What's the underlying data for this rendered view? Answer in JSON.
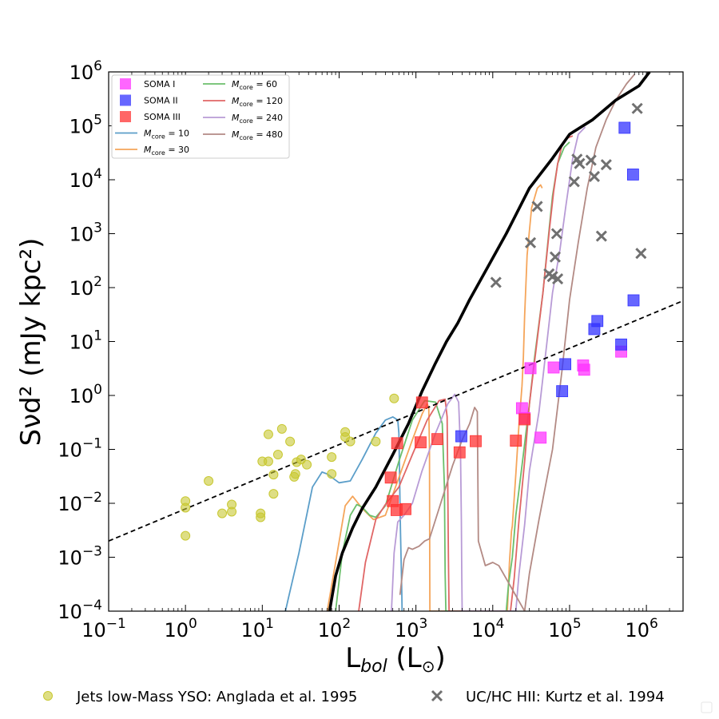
{
  "chart_data": {
    "type": "scatter",
    "title": "",
    "xlabel_main": "L",
    "xlabel_sub": "bol",
    "xlabel_unit_open": " (L",
    "xlabel_unit_sub": "⊙",
    "xlabel_unit_close": ")",
    "ylabel_text": "Sνd² (mJy kpc²)",
    "xscale": "log",
    "yscale": "log",
    "xlim": [
      0.1,
      3000000
    ],
    "ylim": [
      0.0001,
      1000000
    ],
    "x_ticks": [
      {
        "value": 0.1,
        "base": "10",
        "exp": "−1"
      },
      {
        "value": 1,
        "base": "10",
        "exp": "0"
      },
      {
        "value": 10,
        "base": "10",
        "exp": "1"
      },
      {
        "value": 100,
        "base": "10",
        "exp": "2"
      },
      {
        "value": 1000,
        "base": "10",
        "exp": "3"
      },
      {
        "value": 10000,
        "base": "10",
        "exp": "4"
      },
      {
        "value": 100000,
        "base": "10",
        "exp": "5"
      },
      {
        "value": 1000000,
        "base": "10",
        "exp": "6"
      }
    ],
    "y_ticks": [
      {
        "value": 0.0001,
        "base": "10",
        "exp": "−4"
      },
      {
        "value": 0.001,
        "base": "10",
        "exp": "−3"
      },
      {
        "value": 0.01,
        "base": "10",
        "exp": "−2"
      },
      {
        "value": 0.1,
        "base": "10",
        "exp": "−1"
      },
      {
        "value": 1,
        "base": "10",
        "exp": "0"
      },
      {
        "value": 10,
        "base": "10",
        "exp": "1"
      },
      {
        "value": 100,
        "base": "10",
        "exp": "2"
      },
      {
        "value": 1000,
        "base": "10",
        "exp": "3"
      },
      {
        "value": 10000,
        "base": "10",
        "exp": "4"
      },
      {
        "value": 100000,
        "base": "10",
        "exp": "5"
      },
      {
        "value": 1000000,
        "base": "10",
        "exp": "6"
      }
    ],
    "colors": {
      "soma1": "#ff33ff",
      "soma2": "#3333ff",
      "soma3": "#ff3333",
      "anglada": "#c8c832",
      "kurtz": "#707070",
      "m10": "#5b9ec9",
      "m30": "#f5a55a",
      "m60": "#6bbf6b",
      "m120": "#e06666",
      "m240": "#b89bd6",
      "m480": "#b38a84",
      "envelope": "#000000",
      "fit": "#000000"
    },
    "legend_items": [
      {
        "label": "SOMA I",
        "color": "#ff33ff",
        "kind": "square"
      },
      {
        "label": "SOMA II",
        "color": "#3333ff",
        "kind": "square"
      },
      {
        "label": "SOMA III",
        "color": "#ff3333",
        "kind": "square"
      },
      {
        "label": "M",
        "sub": "core",
        "value": " = 10",
        "color": "#5b9ec9",
        "kind": "line"
      },
      {
        "label": "M",
        "sub": "core",
        "value": " = 30",
        "color": "#f5a55a",
        "kind": "line"
      },
      {
        "label": "M",
        "sub": "core",
        "value": " = 60",
        "color": "#6bbf6b",
        "kind": "line"
      },
      {
        "label": "M",
        "sub": "core",
        "value": " = 120",
        "color": "#e06666",
        "kind": "line"
      },
      {
        "label": "M",
        "sub": "core",
        "value": " = 240",
        "color": "#b89bd6",
        "kind": "line"
      },
      {
        "label": "M",
        "sub": "core",
        "value": " = 480",
        "color": "#b38a84",
        "kind": "line"
      }
    ],
    "bottom_legend": [
      {
        "label": "Jets low-Mass YSO: Anglada et al. 1995",
        "kind": "circle"
      },
      {
        "label": "UC/HC HII: Kurtz et al. 1994",
        "kind": "x"
      }
    ],
    "series": [
      {
        "name": "SOMA I",
        "marker": "square",
        "color": "#ff33ff",
        "x": [
          24000,
          26000,
          31000,
          42000,
          62000,
          150000,
          155000,
          470000
        ],
        "y": [
          0.58,
          0.38,
          3.2,
          0.165,
          3.3,
          3.6,
          3.0,
          6.5
        ]
      },
      {
        "name": "SOMA II",
        "marker": "square",
        "color": "#3333ff",
        "x": [
          3900,
          80000,
          88000,
          210000,
          230000,
          470000,
          520000,
          670000,
          680000
        ],
        "y": [
          0.175,
          1.2,
          3.8,
          17,
          24,
          8.8,
          92000,
          12500,
          58
        ]
      },
      {
        "name": "SOMA III",
        "marker": "square",
        "color": "#ff3333",
        "x": [
          470,
          500,
          560,
          570,
          730,
          1150,
          1200,
          1900,
          3700,
          6000,
          20000,
          26000
        ],
        "y": [
          0.03,
          0.011,
          0.0075,
          0.13,
          0.0078,
          0.135,
          0.74,
          0.155,
          0.088,
          0.142,
          0.145,
          0.36
        ]
      },
      {
        "name": "Jets low-Mass YSO: Anglada et al. 1995",
        "marker": "circle",
        "color": "#c8c832",
        "x": [
          1.0,
          1.0,
          1.0,
          2.0,
          3.0,
          4.0,
          4.0,
          9.5,
          9.5,
          10,
          12,
          12,
          14,
          14,
          16,
          18,
          23,
          26,
          27,
          28,
          32,
          38,
          80,
          80,
          120,
          120,
          140,
          300,
          520
        ],
        "y": [
          0.0025,
          0.0083,
          0.011,
          0.026,
          0.0065,
          0.007,
          0.0095,
          0.0055,
          0.0065,
          0.06,
          0.06,
          0.19,
          0.015,
          0.034,
          0.08,
          0.24,
          0.14,
          0.031,
          0.035,
          0.058,
          0.065,
          0.052,
          0.035,
          0.072,
          0.17,
          0.21,
          0.14,
          0.14,
          0.88
        ]
      },
      {
        "name": "UC/HC HII: Kurtz et al. 1994",
        "marker": "x",
        "color": "#707070",
        "x": [
          11000,
          31000,
          38000,
          54000,
          60000,
          65000,
          68000,
          70000,
          115000,
          125000,
          135000,
          190000,
          210000,
          260000,
          300000,
          760000,
          850000
        ],
        "y": [
          125,
          680,
          3200,
          180,
          160,
          370,
          1000,
          145,
          9200,
          24000,
          20000,
          23000,
          11500,
          900,
          19000,
          210000,
          430
        ]
      },
      {
        "name": "M_core = 10",
        "marker": "line",
        "color": "#5b9ec9",
        "x": [
          20,
          22,
          30,
          45,
          60,
          70,
          100,
          140,
          200,
          300,
          400,
          500,
          580,
          600,
          610,
          620,
          630,
          640,
          650,
          655,
          660,
          665
        ],
        "y": [
          0.0001,
          0.00018,
          0.0012,
          0.02,
          0.038,
          0.035,
          0.024,
          0.026,
          0.065,
          0.2,
          0.35,
          0.4,
          0.35,
          0.2,
          0.05,
          0.01,
          0.003,
          0.001,
          0.0004,
          0.0002,
          0.0001,
          0.0001
        ]
      },
      {
        "name": "M_core = 30",
        "marker": "line",
        "color": "#f5a55a",
        "x": [
          70,
          90,
          120,
          150,
          200,
          280,
          400,
          600,
          900,
          1200,
          1400,
          1470,
          1500,
          1510,
          1520,
          15500,
          16500,
          17500,
          18000,
          20000,
          22000,
          24000,
          25000,
          26000,
          28000,
          32000,
          38000,
          42000,
          44000
        ],
        "y": [
          0.0001,
          0.0008,
          0.009,
          0.0135,
          0.008,
          0.005,
          0.006,
          0.03,
          0.15,
          0.45,
          0.7,
          0.6,
          0.1,
          0.001,
          0.0001,
          0.0001,
          0.0008,
          0.003,
          0.0038,
          0.035,
          0.3,
          1.5,
          5,
          30,
          400,
          3000,
          7000,
          8000,
          7000
        ]
      },
      {
        "name": "M_core = 60",
        "marker": "line",
        "color": "#6bbf6b",
        "x": [
          90,
          110,
          140,
          170,
          200,
          250,
          300,
          400,
          600,
          900,
          1300,
          1800,
          2200,
          2350,
          2400,
          2450,
          15000,
          16000,
          18000,
          20000,
          25000,
          30000,
          35000,
          45000,
          55000,
          60000,
          70000,
          85000,
          100000
        ],
        "y": [
          0.0001,
          0.0012,
          0.006,
          0.0095,
          0.0085,
          0.006,
          0.0055,
          0.009,
          0.06,
          0.35,
          0.8,
          0.75,
          0.3,
          0.02,
          0.0005,
          0.0001,
          0.0001,
          0.0003,
          0.001,
          0.006,
          0.08,
          0.7,
          5,
          80,
          1500,
          5000,
          20000,
          40000,
          50000
        ]
      },
      {
        "name": "M_core = 120",
        "marker": "line",
        "color": "#e06666",
        "x": [
          180,
          220,
          300,
          400,
          600,
          900,
          1400,
          2000,
          2400,
          2550,
          2600,
          2650,
          2700,
          17000,
          19000,
          22000,
          26000,
          30000,
          37000,
          45000,
          55000,
          62000,
          70000,
          80000,
          95000,
          110000
        ],
        "y": [
          0.0001,
          0.0008,
          0.005,
          0.0095,
          0.02,
          0.08,
          0.35,
          0.8,
          0.85,
          0.4,
          0.02,
          0.001,
          0.0001,
          0.0001,
          0.0004,
          0.005,
          0.06,
          0.7,
          8,
          80,
          1300,
          6000,
          20000,
          45000,
          60000,
          65000
        ]
      },
      {
        "name": "M_core = 240",
        "marker": "line",
        "color": "#b89bd6",
        "x": [
          480,
          520,
          580,
          700,
          900,
          1200,
          1800,
          2600,
          3200,
          3600,
          3800,
          3900,
          3950,
          4000,
          20000,
          22000,
          26000,
          30000,
          40000,
          50000,
          60000,
          75000,
          90000,
          110000,
          130000,
          160000
        ],
        "y": [
          0.0001,
          0.0012,
          0.0045,
          0.006,
          0.01,
          0.04,
          0.2,
          0.7,
          1.05,
          0.75,
          0.1,
          0.005,
          0.0005,
          0.0001,
          0.0001,
          0.0005,
          0.004,
          0.04,
          0.5,
          8,
          80,
          500,
          3500,
          25000,
          70000,
          95000
        ]
      },
      {
        "name": "M_core = 480",
        "marker": "line",
        "color": "#b38a84",
        "x": [
          620,
          700,
          800,
          900,
          1100,
          1300,
          1500,
          2000,
          3000,
          4000,
          5000,
          5800,
          6300,
          6500,
          8000,
          10000,
          12000,
          26000,
          30000,
          40000,
          60000,
          80000,
          100000,
          130000,
          170000,
          220000,
          300000,
          400000,
          550000,
          700000
        ],
        "y": [
          0.0002,
          0.0009,
          0.0015,
          0.0014,
          0.0016,
          0.002,
          0.0022,
          0.008,
          0.05,
          0.15,
          0.3,
          0.6,
          0.5,
          0.002,
          0.0007,
          0.0008,
          0.0007,
          0.0001,
          0.0005,
          0.005,
          0.1,
          3,
          60,
          700,
          7000,
          40000,
          130000,
          300000,
          600000,
          900000
        ]
      },
      {
        "name": "Envelope",
        "marker": "thick-line",
        "color": "#000000",
        "x": [
          75,
          90,
          110,
          150,
          200,
          300,
          500,
          800,
          1200,
          1800,
          2500,
          3500,
          5000,
          8000,
          15000,
          30000,
          60000,
          100000,
          200000,
          400000,
          800000,
          1100000
        ],
        "y": [
          0.0001,
          0.00045,
          0.0012,
          0.0035,
          0.008,
          0.02,
          0.08,
          0.3,
          1.2,
          4,
          10,
          22,
          60,
          200,
          1000,
          7000,
          25000,
          70000,
          130000,
          300000,
          550000,
          1000000
        ]
      },
      {
        "name": "Fit",
        "marker": "dashed-line",
        "color": "#000000",
        "x": [
          0.1,
          3000000
        ],
        "y": [
          0.002,
          57
        ]
      }
    ]
  }
}
